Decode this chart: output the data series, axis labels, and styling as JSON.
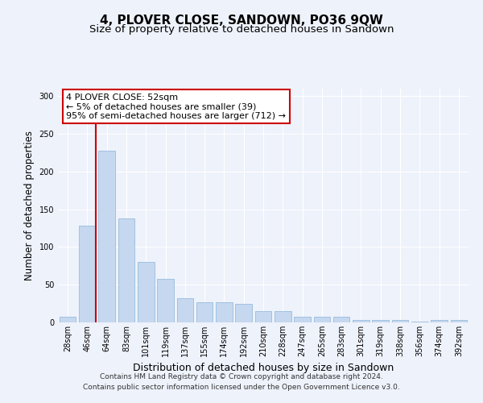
{
  "title": "4, PLOVER CLOSE, SANDOWN, PO36 9QW",
  "subtitle": "Size of property relative to detached houses in Sandown",
  "xlabel": "Distribution of detached houses by size in Sandown",
  "ylabel": "Number of detached properties",
  "categories": [
    "28sqm",
    "46sqm",
    "64sqm",
    "83sqm",
    "101sqm",
    "119sqm",
    "137sqm",
    "155sqm",
    "174sqm",
    "192sqm",
    "210sqm",
    "228sqm",
    "247sqm",
    "265sqm",
    "283sqm",
    "301sqm",
    "319sqm",
    "338sqm",
    "356sqm",
    "374sqm",
    "392sqm"
  ],
  "values": [
    7,
    128,
    228,
    138,
    80,
    58,
    32,
    27,
    27,
    25,
    15,
    15,
    8,
    8,
    7,
    3,
    3,
    3,
    1,
    3,
    3
  ],
  "bar_color": "#c5d8ef",
  "bar_edge_color": "#8ab4d8",
  "vline_x_index": 1,
  "vline_color": "#cc0000",
  "annotation_text": "4 PLOVER CLOSE: 52sqm\n← 5% of detached houses are smaller (39)\n95% of semi-detached houses are larger (712) →",
  "annotation_box_color": "#ffffff",
  "annotation_box_edgecolor": "#cc0000",
  "ylim": [
    0,
    310
  ],
  "yticks": [
    0,
    50,
    100,
    150,
    200,
    250,
    300
  ],
  "footer_line1": "Contains HM Land Registry data © Crown copyright and database right 2024.",
  "footer_line2": "Contains public sector information licensed under the Open Government Licence v3.0.",
  "bg_color": "#eef2fb",
  "title_fontsize": 11,
  "subtitle_fontsize": 9.5,
  "tick_fontsize": 7,
  "xlabel_fontsize": 9,
  "ylabel_fontsize": 8.5,
  "annotation_fontsize": 8
}
